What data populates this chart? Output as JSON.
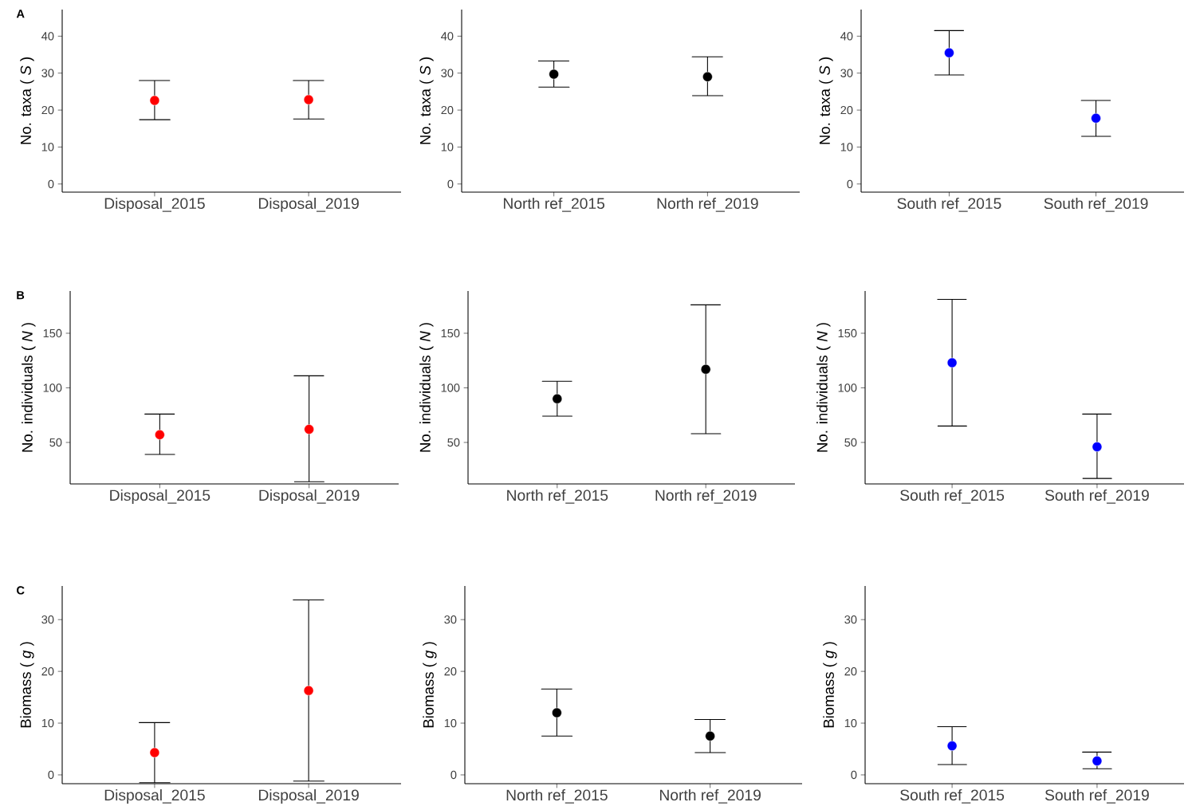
{
  "chart_data": [
    {
      "type": "scatter",
      "annotations": [
        "A"
      ],
      "ylabel": "No. taxa ( *S* )",
      "categories": [
        "Disposal_2015",
        "Disposal_2019"
      ],
      "ylim": [
        -2.2,
        47.2
      ],
      "yticks": [
        0,
        10,
        20,
        30,
        40
      ],
      "marker": "circle",
      "grid": false,
      "series": [
        {
          "color": "#ff0000",
          "values": [
            22.6,
            22.8
          ],
          "errors": [
            [
              17.4,
              28.0
            ],
            [
              17.6,
              28.0
            ]
          ]
        }
      ]
    },
    {
      "type": "scatter",
      "ylabel": "No. taxa ( *S* )",
      "categories": [
        "North ref_2015",
        "North ref_2019"
      ],
      "ylim": [
        -2.2,
        47.2
      ],
      "yticks": [
        0,
        10,
        20,
        30,
        40
      ],
      "marker": "circle",
      "grid": false,
      "series": [
        {
          "color": "#000000",
          "values": [
            29.7,
            29.0
          ],
          "errors": [
            [
              26.2,
              33.3
            ],
            [
              23.9,
              34.4
            ]
          ]
        }
      ]
    },
    {
      "type": "scatter",
      "ylabel": "No. taxa ( *S* )",
      "categories": [
        "South ref_2015",
        "South ref_2019"
      ],
      "ylim": [
        -2.2,
        47.2
      ],
      "yticks": [
        0,
        10,
        20,
        30,
        40
      ],
      "marker": "circle",
      "grid": false,
      "series": [
        {
          "color": "#0000ff",
          "values": [
            35.5,
            17.8
          ],
          "errors": [
            [
              29.5,
              41.5
            ],
            [
              12.9,
              22.6
            ]
          ]
        }
      ]
    },
    {
      "type": "scatter",
      "annotations": [
        "B"
      ],
      "ylabel": "No. individuals ( *N* )",
      "categories": [
        "Disposal_2015",
        "Disposal_2019"
      ],
      "ylim": [
        12,
        188.7
      ],
      "yticks": [
        50,
        100,
        150
      ],
      "marker": "circle",
      "grid": false,
      "series": [
        {
          "color": "#ff0000",
          "values": [
            57,
            62
          ],
          "errors": [
            [
              39,
              76
            ],
            [
              14,
              111
            ]
          ]
        }
      ]
    },
    {
      "type": "scatter",
      "ylabel": "No. individuals ( *N* )",
      "categories": [
        "North ref_2015",
        "North ref_2019"
      ],
      "ylim": [
        12,
        188.7
      ],
      "yticks": [
        50,
        100,
        150
      ],
      "marker": "circle",
      "grid": false,
      "series": [
        {
          "color": "#000000",
          "values": [
            90,
            117
          ],
          "errors": [
            [
              74,
              106
            ],
            [
              58,
              176
            ]
          ]
        }
      ]
    },
    {
      "type": "scatter",
      "ylabel": "No. individuals ( *N* )",
      "categories": [
        "South ref_2015",
        "South ref_2019"
      ],
      "ylim": [
        12,
        188.7
      ],
      "yticks": [
        50,
        100,
        150
      ],
      "marker": "circle",
      "grid": false,
      "series": [
        {
          "color": "#0000ff",
          "values": [
            123,
            46
          ],
          "errors": [
            [
              65,
              181
            ],
            [
              17,
              76
            ]
          ]
        }
      ]
    },
    {
      "type": "scatter",
      "annotations": [
        "C"
      ],
      "ylabel": "Biomass ( *g* )",
      "categories": [
        "Disposal_2015",
        "Disposal_2019"
      ],
      "ylim": [
        -1.7,
        36.5
      ],
      "yticks": [
        0,
        10,
        20,
        30
      ],
      "marker": "circle",
      "grid": false,
      "series": [
        {
          "color": "#ff0000",
          "values": [
            4.3,
            16.3
          ],
          "errors": [
            [
              -1.5,
              10.1
            ],
            [
              -1.2,
              33.8
            ]
          ]
        }
      ]
    },
    {
      "type": "scatter",
      "ylabel": "Biomass ( *g* )",
      "categories": [
        "North ref_2015",
        "North ref_2019"
      ],
      "ylim": [
        -1.7,
        36.5
      ],
      "yticks": [
        0,
        10,
        20,
        30
      ],
      "marker": "circle",
      "grid": false,
      "series": [
        {
          "color": "#000000",
          "values": [
            12.0,
            7.5
          ],
          "errors": [
            [
              7.5,
              16.6
            ],
            [
              4.3,
              10.7
            ]
          ]
        }
      ]
    },
    {
      "type": "scatter",
      "ylabel": "Biomass ( *g* )",
      "categories": [
        "South ref_2015",
        "South ref_2019"
      ],
      "ylim": [
        -1.7,
        36.5
      ],
      "yticks": [
        0,
        10,
        20,
        30
      ],
      "marker": "circle",
      "grid": false,
      "series": [
        {
          "color": "#0000ff",
          "values": [
            5.6,
            2.7
          ],
          "errors": [
            [
              2.0,
              9.3
            ],
            [
              1.2,
              4.4
            ]
          ]
        }
      ]
    }
  ]
}
